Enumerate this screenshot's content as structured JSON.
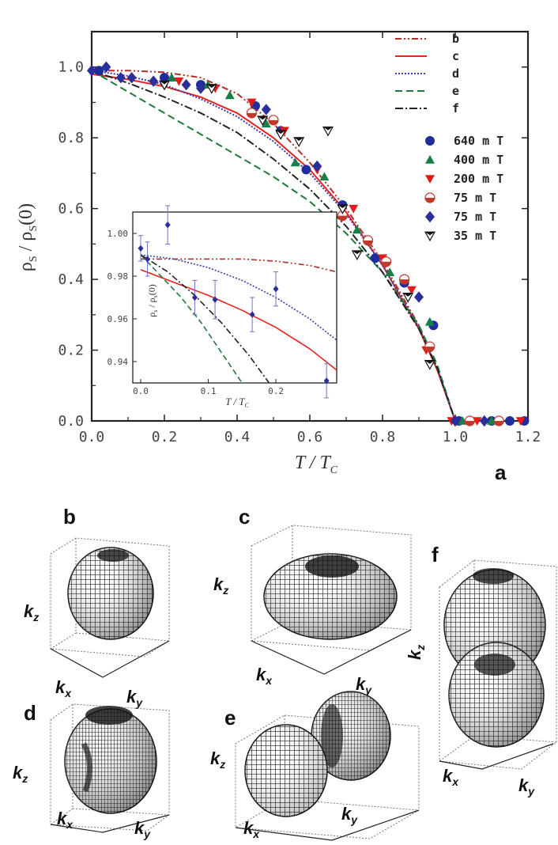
{
  "chart_data": {
    "type": "line",
    "title": "",
    "panel_label": "a",
    "xlabel": {
      "main": "T / T",
      "sub": "C"
    },
    "ylabel": {
      "main": "ρ",
      "sub": "S",
      "mid": " / ρ",
      "sub2": "S",
      "tail": "(0)"
    },
    "xlim": [
      0,
      1.2
    ],
    "ylim": [
      0,
      1.1
    ],
    "xticks": [
      "0.0",
      "0.2",
      "0.4",
      "0.6",
      "0.8",
      "1.0",
      "1.2"
    ],
    "yticks": [
      "0.0",
      "0.2",
      "0.4",
      "0.6",
      "0.8",
      "1.0"
    ],
    "xtick_values": [
      0,
      0.2,
      0.4,
      0.6,
      0.8,
      1.0,
      1.2
    ],
    "ytick_values": [
      0,
      0.2,
      0.4,
      0.6,
      0.8,
      1.0
    ],
    "line_series": [
      {
        "name": "b",
        "color": "#b0302a",
        "dash": "8 3 2 3 2 3",
        "x": [
          0,
          0.1,
          0.2,
          0.3,
          0.4,
          0.5,
          0.6,
          0.7,
          0.8,
          0.9,
          0.95,
          1.0,
          1.2
        ],
        "y": [
          0.99,
          0.99,
          0.985,
          0.97,
          0.925,
          0.84,
          0.73,
          0.6,
          0.45,
          0.27,
          0.15,
          0,
          0
        ]
      },
      {
        "name": "c",
        "color": "#e8231b",
        "dash": "",
        "x": [
          0,
          0.1,
          0.2,
          0.3,
          0.4,
          0.5,
          0.6,
          0.7,
          0.8,
          0.9,
          0.95,
          1.0,
          1.2
        ],
        "y": [
          0.98,
          0.965,
          0.945,
          0.915,
          0.87,
          0.8,
          0.71,
          0.59,
          0.44,
          0.26,
          0.145,
          0,
          0
        ]
      },
      {
        "name": "d",
        "color": "#3a3aa8",
        "dash": "2 2",
        "x": [
          0,
          0.1,
          0.2,
          0.3,
          0.4,
          0.5,
          0.6,
          0.7,
          0.8,
          0.9,
          0.95,
          1.0,
          1.2
        ],
        "y": [
          0.99,
          0.975,
          0.95,
          0.91,
          0.86,
          0.79,
          0.7,
          0.585,
          0.44,
          0.265,
          0.15,
          0,
          0
        ]
      },
      {
        "name": "e",
        "color": "#1e7a3a",
        "dash": "9 5",
        "x": [
          0,
          0.1,
          0.2,
          0.3,
          0.4,
          0.5,
          0.6,
          0.7,
          0.8,
          0.9,
          0.95,
          1.0,
          1.2
        ],
        "y": [
          0.99,
          0.93,
          0.87,
          0.81,
          0.75,
          0.69,
          0.62,
          0.53,
          0.42,
          0.27,
          0.16,
          0,
          0
        ]
      },
      {
        "name": "f",
        "color": "#222222",
        "dash": "10 3 2 3",
        "x": [
          0,
          0.1,
          0.2,
          0.3,
          0.4,
          0.5,
          0.6,
          0.7,
          0.8,
          0.9,
          0.95,
          1.0,
          1.2
        ],
        "y": [
          0.99,
          0.955,
          0.915,
          0.87,
          0.815,
          0.74,
          0.655,
          0.55,
          0.42,
          0.26,
          0.15,
          0,
          0
        ]
      }
    ],
    "marker_series": [
      {
        "name": "640 m T",
        "marker": "circle",
        "color": "#1f2e9c",
        "x": [
          0.02,
          0.2,
          0.3,
          0.45,
          0.52,
          0.59,
          0.69,
          0.78,
          0.86,
          0.94,
          1.01,
          1.1,
          1.15,
          1.19
        ],
        "y": [
          0.99,
          0.97,
          0.95,
          0.89,
          0.82,
          0.71,
          0.61,
          0.46,
          0.39,
          0.27,
          0,
          0,
          0,
          0
        ]
      },
      {
        "name": "400 m T",
        "marker": "triangle-up",
        "color": "#15804a",
        "x": [
          0.22,
          0.32,
          0.38,
          0.48,
          0.56,
          0.64,
          0.73,
          0.82,
          0.93,
          1.02,
          1.1
        ],
        "y": [
          0.97,
          0.95,
          0.92,
          0.84,
          0.73,
          0.69,
          0.54,
          0.42,
          0.28,
          0,
          0
        ]
      },
      {
        "name": "200 m T",
        "marker": "triangle-down",
        "color": "#e51a1a",
        "x": [
          0.24,
          0.34,
          0.44,
          0.53,
          0.62,
          0.72,
          0.8,
          0.88,
          0.92,
          0.99,
          1.06,
          1.18
        ],
        "y": [
          0.96,
          0.94,
          0.9,
          0.82,
          0.71,
          0.6,
          0.46,
          0.37,
          0.2,
          0,
          0,
          0
        ]
      },
      {
        "name": "75 m T",
        "marker": "half-circle",
        "color": "#c0392b",
        "x": [
          0.44,
          0.5,
          0.69,
          0.76,
          0.81,
          0.86,
          0.93,
          1.04,
          1.12
        ],
        "y": [
          0.87,
          0.85,
          0.58,
          0.51,
          0.45,
          0.4,
          0.21,
          0,
          0
        ]
      },
      {
        "name": "75 m T",
        "marker": "diamond",
        "color": "#2a2f9a",
        "x": [
          0,
          0.04,
          0.08,
          0.11,
          0.17,
          0.26,
          0.3,
          0.48,
          0.62,
          0.9,
          1.0,
          1.08
        ],
        "y": [
          0.99,
          1.0,
          0.97,
          0.97,
          0.96,
          0.95,
          0.94,
          0.88,
          0.72,
          0.35,
          0,
          0
        ]
      },
      {
        "name": "35 m T",
        "marker": "triangle-down-open",
        "color": "#111111",
        "x": [
          0.2,
          0.33,
          0.47,
          0.52,
          0.57,
          0.65,
          0.69,
          0.73,
          0.87,
          0.93
        ],
        "y": [
          0.95,
          0.94,
          0.85,
          0.81,
          0.79,
          0.82,
          0.6,
          0.47,
          0.35,
          0.16
        ]
      }
    ],
    "inset": {
      "xlabel": {
        "main": "T / T",
        "sub": "C"
      },
      "ylabel": {
        "main": "ρ",
        "sub": "s",
        "mid": " / ρ",
        "sub2": "s",
        "tail": "(0)"
      },
      "xlim": [
        0,
        0.29
      ],
      "ylim": [
        0.93,
        1.01
      ],
      "xticks": [
        "0.0",
        "0.1",
        "0.2"
      ],
      "yticks": [
        "0.94",
        "0.96",
        "0.98",
        "1.00"
      ],
      "xtick_values": [
        0,
        0.1,
        0.2
      ],
      "ytick_values": [
        0.94,
        0.96,
        0.98,
        1.0
      ],
      "line_series": [
        {
          "name": "b",
          "color": "#b0302a",
          "dash": "7 3 2 3 2 3",
          "x": [
            0,
            0.05,
            0.1,
            0.15,
            0.2,
            0.25,
            0.29
          ],
          "y": [
            0.988,
            0.988,
            0.988,
            0.988,
            0.987,
            0.985,
            0.982
          ]
        },
        {
          "name": "c",
          "color": "#e8231b",
          "dash": "",
          "x": [
            0,
            0.05,
            0.1,
            0.15,
            0.2,
            0.25,
            0.29
          ],
          "y": [
            0.983,
            0.977,
            0.971,
            0.964,
            0.956,
            0.946,
            0.936
          ]
        },
        {
          "name": "d",
          "color": "#3a3aa8",
          "dash": "2 2",
          "x": [
            0,
            0.05,
            0.1,
            0.15,
            0.2,
            0.25,
            0.29
          ],
          "y": [
            0.99,
            0.988,
            0.984,
            0.978,
            0.97,
            0.96,
            0.95
          ]
        },
        {
          "name": "e",
          "color": "#1e7a3a",
          "dash": "7 4",
          "x": [
            0,
            0.03,
            0.06,
            0.09,
            0.12,
            0.15
          ],
          "y": [
            0.99,
            0.98,
            0.97,
            0.958,
            0.944,
            0.93
          ]
        },
        {
          "name": "f",
          "color": "#222222",
          "dash": "8 3 2 3",
          "x": [
            0,
            0.04,
            0.08,
            0.12,
            0.16,
            0.19
          ],
          "y": [
            0.99,
            0.982,
            0.971,
            0.958,
            0.943,
            0.93
          ]
        }
      ],
      "points": {
        "name": "75 m T",
        "marker": "diamond",
        "color": "#2a2f9a",
        "x": [
          0.0,
          0.01,
          0.04,
          0.08,
          0.11,
          0.165,
          0.2,
          0.275
        ],
        "y": [
          0.993,
          0.988,
          1.004,
          0.97,
          0.969,
          0.962,
          0.974,
          0.931
        ],
        "err": [
          0.006,
          0.008,
          0.009,
          0.008,
          0.009,
          0.008,
          0.008,
          0.008
        ]
      }
    }
  },
  "panels": {
    "b": {
      "label": "b",
      "kx": "k",
      "kx_sub": "x",
      "ky": "k",
      "ky_sub": "y",
      "kz": "k",
      "kz_sub": "z"
    },
    "c": {
      "label": "c",
      "kx": "k",
      "kx_sub": "x",
      "ky": "k",
      "ky_sub": "y",
      "kz": "k",
      "kz_sub": "z"
    },
    "d": {
      "label": "d",
      "kx": "k",
      "kx_sub": "x",
      "ky": "k",
      "ky_sub": "y",
      "kz": "k",
      "kz_sub": "z"
    },
    "e": {
      "label": "e",
      "kx": "k",
      "kx_sub": "x",
      "ky": "k",
      "ky_sub": "y",
      "kz": "k",
      "kz_sub": "z"
    },
    "f": {
      "label": "f",
      "kx": "k",
      "kx_sub": "x",
      "ky": "k",
      "ky_sub": "y",
      "kz": "k",
      "kz_sub": "z"
    }
  }
}
